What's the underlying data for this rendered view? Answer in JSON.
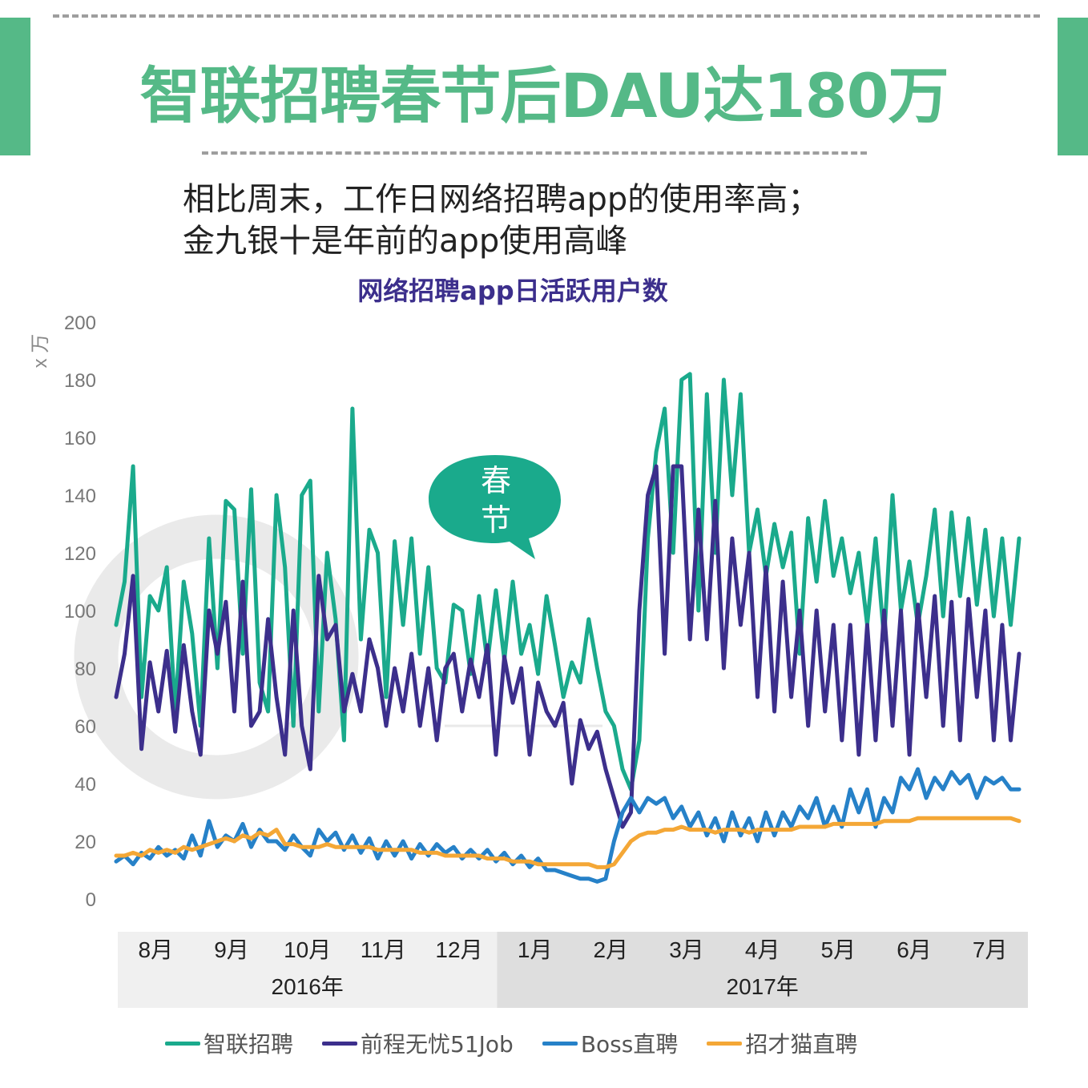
{
  "header": {
    "title": "智联招聘春节后DAU达180万",
    "subtitle_lines": [
      "相比周末，工作日网络招聘app的使用率高；",
      "金九银十是年前的app使用高峰"
    ]
  },
  "colors": {
    "brand_green": "#55b987",
    "title_purple": "#3c2f8c"
  },
  "chart_data": {
    "type": "line",
    "title": "网络招聘app日活跃用户数",
    "ylabel": "x 万",
    "ylim": [
      0,
      200
    ],
    "yticks": [
      0,
      20,
      40,
      60,
      80,
      100,
      120,
      140,
      160,
      180,
      200
    ],
    "months": [
      "8月",
      "9月",
      "10月",
      "11月",
      "12月",
      "1月",
      "2月",
      "3月",
      "4月",
      "5月",
      "6月",
      "7月"
    ],
    "years": [
      {
        "label": "2016年",
        "months": 5
      },
      {
        "label": "2017年",
        "months": 7
      }
    ],
    "annotation": {
      "text": "春节",
      "period": "2017-01 late"
    },
    "series": [
      {
        "name": "智联招聘",
        "color": "#1aaa8c",
        "values": [
          95,
          110,
          150,
          70,
          105,
          100,
          115,
          65,
          110,
          92,
          60,
          125,
          80,
          138,
          135,
          85,
          142,
          75,
          65,
          140,
          115,
          60,
          140,
          145,
          65,
          120,
          97,
          55,
          170,
          90,
          128,
          120,
          70,
          124,
          95,
          125,
          85,
          115,
          80,
          75,
          102,
          100,
          78,
          105,
          82,
          107,
          83,
          110,
          85,
          95,
          78,
          105,
          88,
          70,
          82,
          75,
          97,
          80,
          65,
          60,
          45,
          38,
          55,
          125,
          155,
          170,
          120,
          180,
          182,
          100,
          175,
          120,
          180,
          140,
          175,
          120,
          135,
          112,
          130,
          115,
          127,
          85,
          132,
          110,
          138,
          112,
          125,
          106,
          120,
          95,
          125,
          90,
          140,
          100,
          117,
          95,
          112,
          135,
          98,
          134,
          105,
          132,
          102,
          128,
          98,
          125,
          95,
          125
        ]
      },
      {
        "name": "前程无忧51Job",
        "color": "#3c2f8c",
        "values": [
          70,
          85,
          112,
          52,
          82,
          65,
          86,
          58,
          88,
          65,
          50,
          100,
          85,
          103,
          65,
          110,
          60,
          65,
          97,
          70,
          50,
          100,
          60,
          45,
          112,
          90,
          95,
          65,
          78,
          65,
          90,
          80,
          60,
          80,
          65,
          85,
          60,
          80,
          55,
          80,
          85,
          65,
          83,
          70,
          88,
          50,
          84,
          68,
          80,
          50,
          75,
          65,
          60,
          68,
          40,
          62,
          52,
          58,
          45,
          35,
          25,
          30,
          100,
          140,
          150,
          85,
          150,
          150,
          90,
          135,
          90,
          138,
          80,
          125,
          95,
          120,
          70,
          115,
          65,
          110,
          70,
          100,
          60,
          100,
          65,
          95,
          55,
          95,
          50,
          95,
          55,
          100,
          60,
          100,
          50,
          102,
          70,
          105,
          60,
          103,
          55,
          104,
          70,
          100,
          55,
          95,
          55,
          85
        ]
      },
      {
        "name": "Boss直聘",
        "color": "#2681c8",
        "values": [
          13,
          15,
          12,
          16,
          14,
          18,
          15,
          17,
          14,
          22,
          15,
          27,
          18,
          22,
          20,
          26,
          18,
          24,
          20,
          20,
          17,
          22,
          18,
          15,
          24,
          20,
          23,
          17,
          22,
          16,
          21,
          14,
          20,
          15,
          20,
          14,
          19,
          15,
          19,
          16,
          18,
          14,
          17,
          14,
          17,
          13,
          16,
          12,
          15,
          11,
          14,
          10,
          10,
          9,
          8,
          7,
          7,
          6,
          7,
          20,
          30,
          35,
          30,
          35,
          33,
          35,
          28,
          32,
          25,
          30,
          22,
          28,
          20,
          30,
          22,
          28,
          20,
          30,
          22,
          30,
          25,
          32,
          28,
          35,
          25,
          32,
          25,
          38,
          30,
          38,
          25,
          35,
          30,
          42,
          38,
          45,
          35,
          42,
          38,
          44,
          40,
          43,
          35,
          42,
          40,
          42,
          38,
          38
        ]
      },
      {
        "name": "招才猫直聘",
        "color": "#f4a736",
        "values": [
          15,
          15,
          16,
          15,
          17,
          16,
          17,
          16,
          18,
          17,
          18,
          19,
          20,
          21,
          20,
          22,
          21,
          23,
          22,
          24,
          19,
          19,
          18,
          18,
          18,
          19,
          18,
          18,
          18,
          18,
          18,
          17,
          17,
          17,
          17,
          17,
          16,
          16,
          16,
          15,
          15,
          15,
          15,
          15,
          14,
          14,
          14,
          13,
          13,
          13,
          12,
          12,
          12,
          12,
          12,
          12,
          12,
          11,
          11,
          12,
          16,
          20,
          22,
          23,
          23,
          24,
          24,
          25,
          24,
          24,
          24,
          23,
          24,
          24,
          24,
          23,
          24,
          24,
          24,
          24,
          24,
          25,
          25,
          25,
          25,
          26,
          26,
          26,
          26,
          26,
          26,
          27,
          27,
          27,
          27,
          28,
          28,
          28,
          28,
          28,
          28,
          28,
          28,
          28,
          28,
          28,
          28,
          27
        ]
      }
    ]
  }
}
